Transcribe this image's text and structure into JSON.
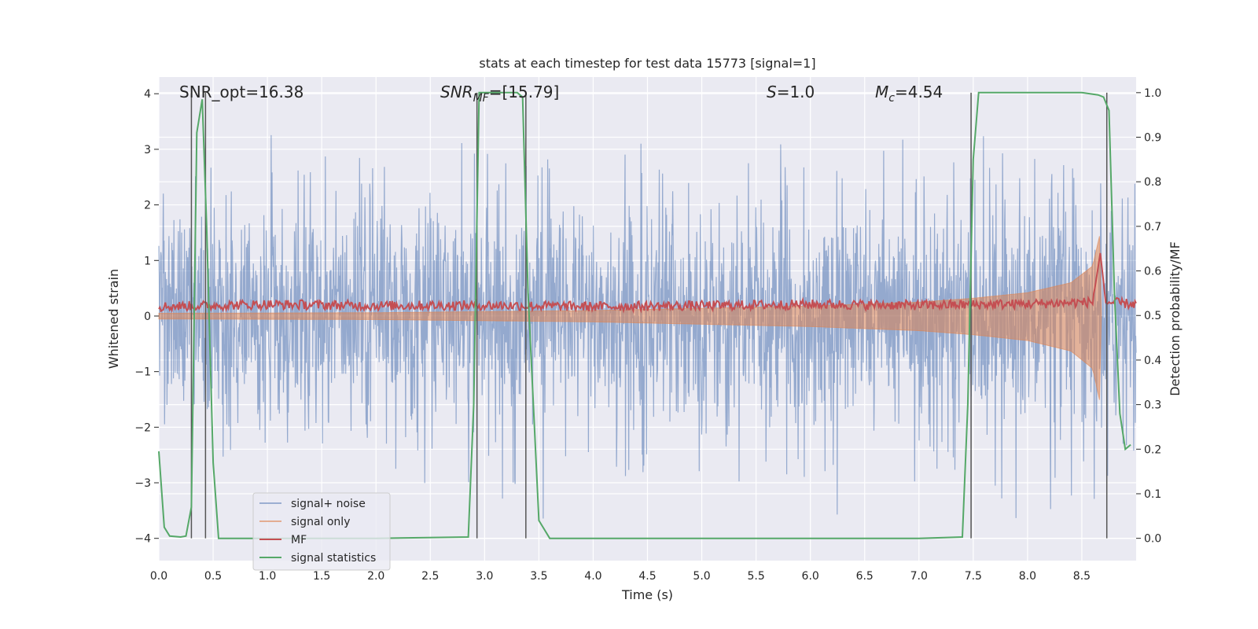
{
  "chart_data": {
    "type": "line",
    "title": "stats at each timestep for test data 15773 [signal=1]",
    "xlabel": "Time (s)",
    "ylabel_left": "Whitened strain",
    "ylabel_right": "Detection probability/MF",
    "xlim": [
      0.0,
      9.0
    ],
    "ylim_left": [
      -4.4,
      4.3
    ],
    "ylim_right": [
      -0.05,
      1.035
    ],
    "xticks": [
      0.0,
      0.5,
      1.0,
      1.5,
      2.0,
      2.5,
      3.0,
      3.5,
      4.0,
      4.5,
      5.0,
      5.5,
      6.0,
      6.5,
      7.0,
      7.5,
      8.0,
      8.5
    ],
    "xtick_labels": [
      "0.0",
      "0.5",
      "1.0",
      "1.5",
      "2.0",
      "2.5",
      "3.0",
      "3.5",
      "4.0",
      "4.5",
      "5.0",
      "5.5",
      "6.0",
      "6.5",
      "7.0",
      "7.5",
      "8.0",
      "8.5"
    ],
    "yticks_left": [
      -4,
      -3,
      -2,
      -1,
      0,
      1,
      2,
      3,
      4
    ],
    "ytick_labels_left": [
      "−4",
      "−3",
      "−2",
      "−1",
      "0",
      "1",
      "2",
      "3",
      "4"
    ],
    "yticks_right": [
      0.0,
      0.1,
      0.2,
      0.3,
      0.4,
      0.5,
      0.6,
      0.7,
      0.8,
      0.9,
      1.0
    ],
    "ytick_labels_right": [
      "0.0",
      "0.1",
      "0.2",
      "0.3",
      "0.4",
      "0.5",
      "0.6",
      "0.7",
      "0.8",
      "0.9",
      "1.0"
    ],
    "annotations": {
      "snr_opt": "SNR_opt=16.38",
      "snr_mf_base": "SNR",
      "snr_mf_sub": "MF",
      "snr_mf_val": "=[15.79]",
      "s_base": "S",
      "s_val": "=1.0",
      "mc_base": "M",
      "mc_sub": "c",
      "mc_val": "=4.54"
    },
    "legend": {
      "position": "lower-left",
      "entries": [
        "signal+ noise",
        "signal only",
        "MF",
        "signal statistics"
      ]
    },
    "series": [
      {
        "name": "signal+ noise",
        "axis": "left",
        "color": "#4c72b0",
        "style": "dense noise, band approx ±1.5, spikes to ±3.9",
        "envelope_x": [
          0.0,
          1.0,
          2.0,
          3.0,
          4.0,
          5.0,
          6.0,
          7.0,
          8.0,
          9.0
        ],
        "envelope_upper": [
          2.4,
          2.5,
          2.6,
          2.9,
          3.1,
          2.8,
          3.0,
          2.8,
          2.8,
          2.4
        ],
        "envelope_lower": [
          -2.2,
          -2.2,
          -2.3,
          -3.6,
          -2.8,
          -2.7,
          -3.1,
          -3.3,
          -3.6,
          -2.9
        ]
      },
      {
        "name": "signal only",
        "axis": "left",
        "color": "#dd8452",
        "style": "chirp, amplitude growing toward merger at t=8.67",
        "amp_x": [
          0.0,
          2.0,
          4.0,
          5.0,
          6.0,
          7.0,
          7.5,
          8.0,
          8.4,
          8.6,
          8.67,
          8.68
        ],
        "amp_y": [
          0.05,
          0.06,
          0.1,
          0.14,
          0.18,
          0.25,
          0.32,
          0.42,
          0.6,
          0.9,
          1.5,
          0.0
        ]
      },
      {
        "name": "MF",
        "axis": "right",
        "color": "#c44e52",
        "style": "noisy line near 0.52, peak near t=8.67",
        "x": [
          0.0,
          1.0,
          2.0,
          3.0,
          4.0,
          5.0,
          6.0,
          7.0,
          8.0,
          8.6,
          8.67,
          8.72,
          9.0
        ],
        "y": [
          0.52,
          0.525,
          0.522,
          0.523,
          0.52,
          0.522,
          0.525,
          0.523,
          0.526,
          0.53,
          0.64,
          0.53,
          0.525
        ]
      },
      {
        "name": "signal statistics",
        "axis": "right",
        "color": "#55a868",
        "x": [
          0.0,
          0.05,
          0.1,
          0.2,
          0.25,
          0.3,
          0.35,
          0.4,
          0.44,
          0.5,
          0.55,
          0.6,
          1.0,
          2.0,
          2.85,
          2.9,
          2.95,
          3.0,
          3.1,
          3.3,
          3.35,
          3.4,
          3.5,
          3.6,
          3.7,
          4.0,
          5.0,
          6.0,
          7.0,
          7.4,
          7.45,
          7.5,
          7.55,
          7.6,
          8.0,
          8.5,
          8.65,
          8.7,
          8.75,
          8.8,
          8.85,
          8.9,
          8.95
        ],
        "y": [
          0.195,
          0.025,
          0.005,
          0.003,
          0.005,
          0.07,
          0.91,
          0.985,
          0.7,
          0.17,
          0.0,
          0.0,
          0.0,
          0.0,
          0.003,
          0.3,
          1.0,
          1.0,
          1.0,
          1.0,
          0.99,
          0.55,
          0.04,
          0.0,
          0.0,
          0.0,
          0.0,
          0.0,
          0.0,
          0.003,
          0.3,
          0.85,
          1.0,
          1.0,
          1.0,
          1.0,
          0.995,
          0.99,
          0.96,
          0.55,
          0.28,
          0.2,
          0.21
        ]
      }
    ],
    "vertical_lines": [
      0.3,
      0.43,
      2.93,
      3.38,
      7.48,
      8.73
    ]
  }
}
